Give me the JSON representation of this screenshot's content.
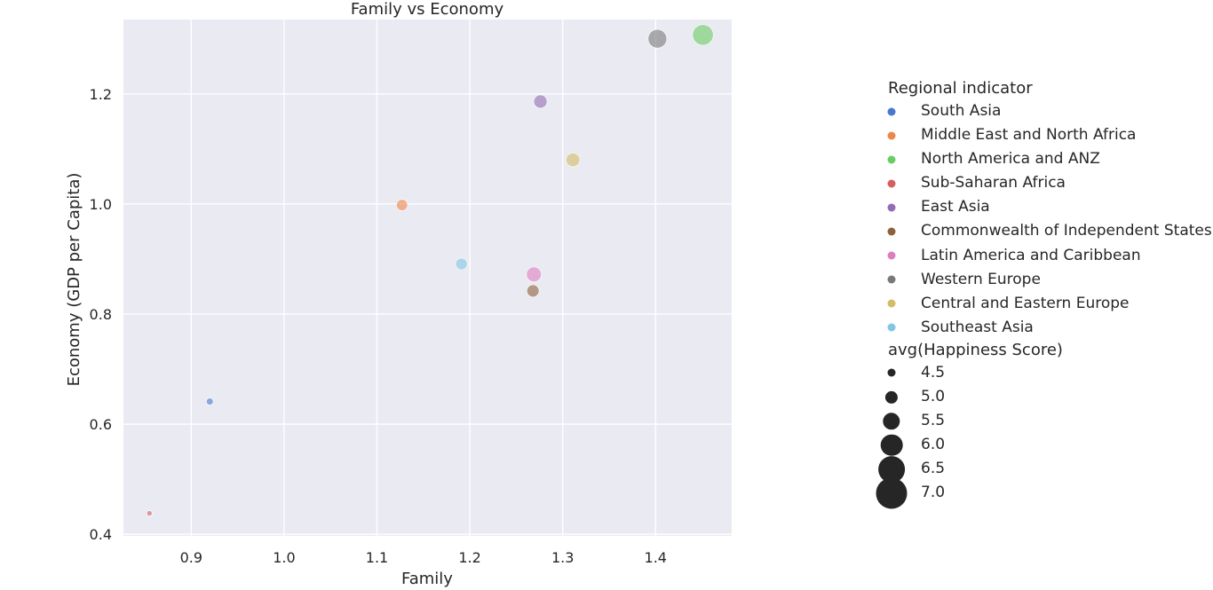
{
  "chart_data": {
    "type": "scatter",
    "title": "Family vs Economy",
    "xlabel": "Family",
    "ylabel": "Economy (GDP per Capita)",
    "xlim": [
      0.827,
      1.482
    ],
    "ylim": [
      0.397,
      1.335
    ],
    "xticks": [
      "0.9",
      "1.0",
      "1.1",
      "1.2",
      "1.3",
      "1.4"
    ],
    "yticks": [
      "0.4",
      "0.6",
      "0.8",
      "1.0",
      "1.2"
    ],
    "grid": true,
    "legend_placement": "right, outside plot",
    "hue_title": "Regional indicator",
    "size_title": "avg(Happiness Score)",
    "size_levels": [
      "4.5",
      "5.0",
      "5.5",
      "6.0",
      "6.5",
      "7.0"
    ],
    "points": [
      {
        "region": "South Asia",
        "x": 0.92,
        "y": 0.641,
        "size": 4.6
      },
      {
        "region": "Middle East and North Africa",
        "x": 1.127,
        "y": 0.998,
        "size": 5.4
      },
      {
        "region": "North America and ANZ",
        "x": 1.451,
        "y": 1.307,
        "size": 7.2
      },
      {
        "region": "Sub-Saharan Africa",
        "x": 0.855,
        "y": 0.438,
        "size": 4.3
      },
      {
        "region": "East Asia",
        "x": 1.276,
        "y": 1.186,
        "size": 5.8
      },
      {
        "region": "Commonwealth of Independent States",
        "x": 1.268,
        "y": 0.842,
        "size": 5.6
      },
      {
        "region": "Latin America and Caribbean",
        "x": 1.269,
        "y": 0.872,
        "size": 6.1
      },
      {
        "region": "Western Europe",
        "x": 1.402,
        "y": 1.3,
        "size": 6.8
      },
      {
        "region": "Central and Eastern Europe",
        "x": 1.311,
        "y": 1.08,
        "size": 5.9
      },
      {
        "region": "Southeast Asia",
        "x": 1.191,
        "y": 0.891,
        "size": 5.5
      }
    ],
    "series": [
      {
        "name": "South Asia",
        "color": "#4878d0"
      },
      {
        "name": "Middle East and North Africa",
        "color": "#ee854a"
      },
      {
        "name": "North America and ANZ",
        "color": "#6acc64"
      },
      {
        "name": "Sub-Saharan Africa",
        "color": "#d65f5f"
      },
      {
        "name": "East Asia",
        "color": "#956cb4"
      },
      {
        "name": "Commonwealth of Independent States",
        "color": "#8c613c"
      },
      {
        "name": "Latin America and Caribbean",
        "color": "#dc7ec0"
      },
      {
        "name": "Western Europe",
        "color": "#797979"
      },
      {
        "name": "Central and Eastern Europe",
        "color": "#d5bb67"
      },
      {
        "name": "Southeast Asia",
        "color": "#82c6e2"
      }
    ]
  }
}
